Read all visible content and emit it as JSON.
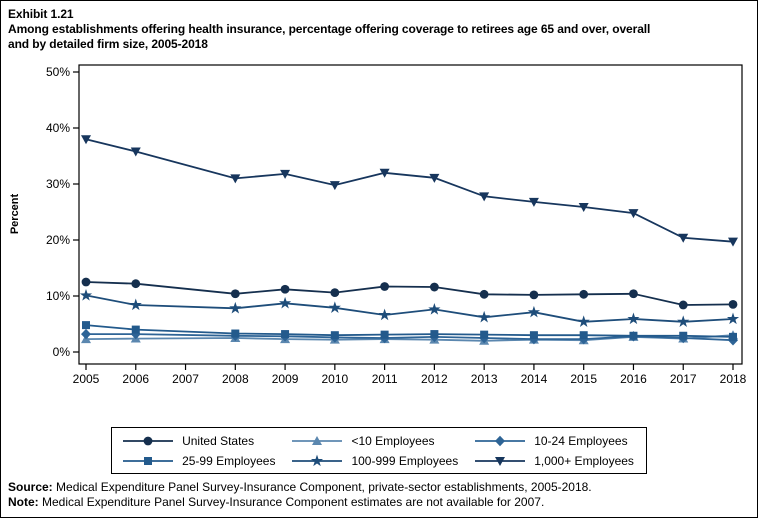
{
  "exhibit": {
    "label": "Exhibit 1.21",
    "title_line1": "Among establishments offering health insurance, percentage offering coverage to retirees age 65 and over, overall",
    "title_line2": "and by detailed firm size, 2005-2018"
  },
  "footer": {
    "source_label": "Source:",
    "source_text": " Medical Expenditure Panel Survey-Insurance Component, private-sector establishments, 2005-2018.",
    "note_label": "Note:",
    "note_text": " Medical Expenditure Panel Survey-Insurance Component estimates are not available for 2007."
  },
  "chart_data": {
    "type": "line",
    "title": "Among establishments offering health insurance, percentage offering coverage to retirees age 65 and over, overall and by detailed firm size, 2005-2018",
    "xlabel": "",
    "ylabel": "Percent",
    "ylim": [
      0,
      50
    ],
    "yticks": [
      0,
      10,
      20,
      30,
      40,
      50
    ],
    "ytick_suffix": "%",
    "grid": false,
    "legend_position": "bottom",
    "note": "Estimates not available for 2007; lines are connected across the gap.",
    "categories": [
      "2005",
      "2006",
      "2007",
      "2008",
      "2009",
      "2010",
      "2011",
      "2012",
      "2013",
      "2014",
      "2015",
      "2016",
      "2017",
      "2018"
    ],
    "series": [
      {
        "name": "United States",
        "marker": "circle",
        "color": "#152F4E",
        "values": [
          12.5,
          12.2,
          null,
          10.4,
          11.2,
          10.6,
          11.7,
          11.6,
          10.3,
          10.2,
          10.3,
          10.4,
          8.4,
          8.5
        ]
      },
      {
        "name": "<10 Employees",
        "marker": "triangle-up",
        "color": "#5B87AF",
        "values": [
          2.3,
          2.4,
          null,
          2.5,
          2.3,
          2.2,
          2.3,
          2.2,
          2.0,
          2.2,
          2.1,
          2.7,
          2.4,
          3.0
        ]
      },
      {
        "name": "10-24 Employees",
        "marker": "diamond",
        "color": "#2E6496",
        "values": [
          3.2,
          3.2,
          null,
          2.9,
          2.8,
          2.6,
          2.5,
          2.7,
          2.5,
          2.3,
          2.3,
          2.8,
          2.5,
          2.1
        ]
      },
      {
        "name": "25-99 Employees",
        "marker": "square",
        "color": "#235A8C",
        "values": [
          4.8,
          4.0,
          null,
          3.3,
          3.2,
          3.0,
          3.1,
          3.2,
          3.1,
          3.0,
          3.0,
          2.9,
          2.9,
          2.7
        ]
      },
      {
        "name": "100-999 Employees",
        "marker": "star",
        "color": "#1E4D7A",
        "values": [
          10.1,
          8.4,
          null,
          7.8,
          8.7,
          7.9,
          6.6,
          7.6,
          6.2,
          7.1,
          5.4,
          5.9,
          5.4,
          5.9
        ]
      },
      {
        "name": "1,000+ Employees",
        "marker": "triangle-down",
        "color": "#17365D",
        "values": [
          38.0,
          35.8,
          null,
          31.0,
          31.8,
          29.8,
          32.0,
          31.1,
          27.8,
          26.8,
          25.9,
          24.8,
          20.4,
          19.7
        ]
      }
    ]
  }
}
